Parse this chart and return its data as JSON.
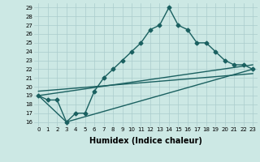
{
  "xlabel": "Humidex (Indice chaleur)",
  "bg_color": "#cce8e4",
  "grid_color": "#aacccc",
  "line_color": "#1a6060",
  "xlim": [
    -0.5,
    23.5
  ],
  "ylim": [
    15.5,
    29.5
  ],
  "xticks": [
    0,
    1,
    2,
    3,
    4,
    5,
    6,
    7,
    8,
    9,
    10,
    11,
    12,
    13,
    14,
    15,
    16,
    17,
    18,
    19,
    20,
    21,
    22,
    23
  ],
  "yticks": [
    16,
    17,
    18,
    19,
    20,
    21,
    22,
    23,
    24,
    25,
    26,
    27,
    28,
    29
  ],
  "line1_x": [
    0,
    1,
    2,
    3,
    4,
    5,
    6,
    7,
    8,
    9,
    10,
    11,
    12,
    13,
    14,
    15,
    16,
    17,
    18,
    19,
    20,
    21,
    22,
    23
  ],
  "line1_y": [
    19,
    18.5,
    18.5,
    16,
    17,
    17,
    19.5,
    21,
    22,
    23,
    24,
    25,
    26.5,
    27,
    29,
    27,
    26.5,
    25,
    25,
    24,
    23,
    22.5,
    22.5,
    22
  ],
  "line2_x": [
    0,
    3,
    23
  ],
  "line2_y": [
    19,
    16,
    22
  ],
  "line3_x": [
    0,
    23
  ],
  "line3_y": [
    19,
    22.5
  ],
  "line4_x": [
    0,
    23
  ],
  "line4_y": [
    19.5,
    21.5
  ],
  "markersize": 2.5,
  "linewidth": 1.0,
  "xlabel_fontsize": 7,
  "tick_fontsize": 5
}
